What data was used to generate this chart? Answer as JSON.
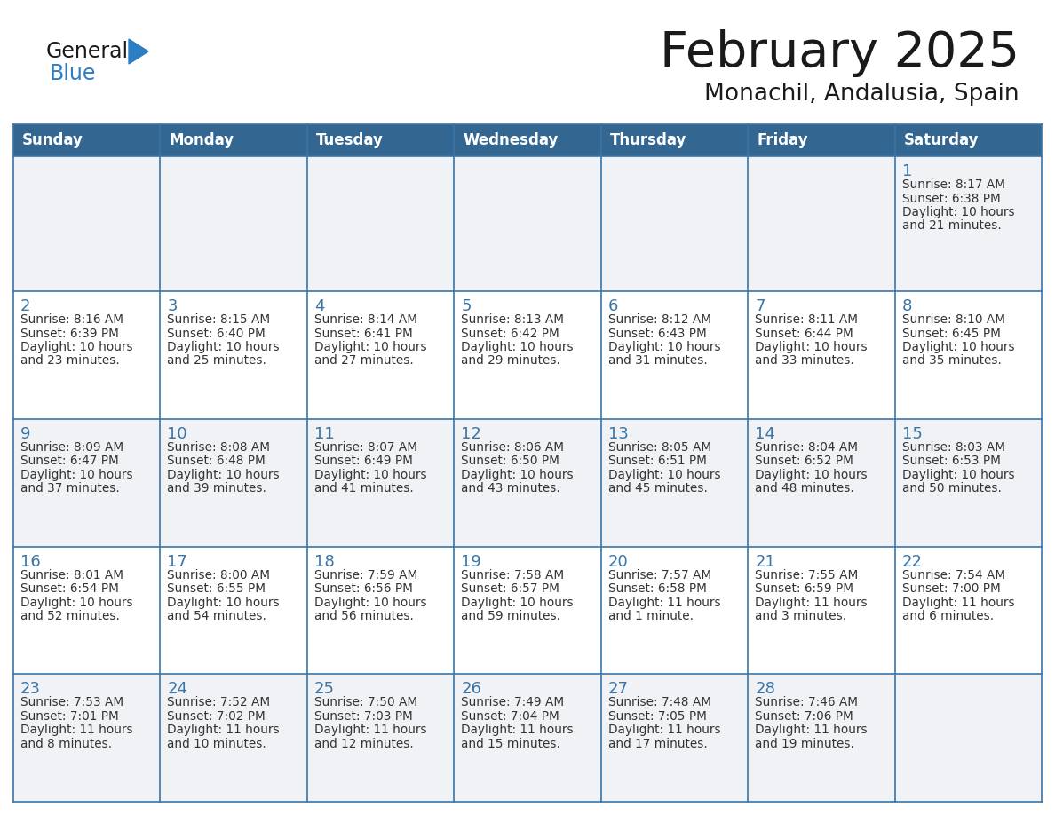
{
  "title": "February 2025",
  "subtitle": "Monachil, Andalusia, Spain",
  "days_of_week": [
    "Sunday",
    "Monday",
    "Tuesday",
    "Wednesday",
    "Thursday",
    "Friday",
    "Saturday"
  ],
  "header_bg": "#336791",
  "header_text_color": "#FFFFFF",
  "cell_bg_odd": "#F0F2F5",
  "cell_bg_even": "#FFFFFF",
  "border_color": "#3A75A8",
  "day_num_color": "#3A75A8",
  "text_color": "#333333",
  "title_color": "#1a1a1a",
  "logo_general_color": "#1a1a1a",
  "logo_blue_color": "#2E7EC3",
  "calendar_data": [
    {
      "day": 1,
      "row": 0,
      "col": 6,
      "sunrise": "8:17 AM",
      "sunset": "6:38 PM",
      "daylight": "10 hours",
      "daylight2": "and 21 minutes."
    },
    {
      "day": 2,
      "row": 1,
      "col": 0,
      "sunrise": "8:16 AM",
      "sunset": "6:39 PM",
      "daylight": "10 hours",
      "daylight2": "and 23 minutes."
    },
    {
      "day": 3,
      "row": 1,
      "col": 1,
      "sunrise": "8:15 AM",
      "sunset": "6:40 PM",
      "daylight": "10 hours",
      "daylight2": "and 25 minutes."
    },
    {
      "day": 4,
      "row": 1,
      "col": 2,
      "sunrise": "8:14 AM",
      "sunset": "6:41 PM",
      "daylight": "10 hours",
      "daylight2": "and 27 minutes."
    },
    {
      "day": 5,
      "row": 1,
      "col": 3,
      "sunrise": "8:13 AM",
      "sunset": "6:42 PM",
      "daylight": "10 hours",
      "daylight2": "and 29 minutes."
    },
    {
      "day": 6,
      "row": 1,
      "col": 4,
      "sunrise": "8:12 AM",
      "sunset": "6:43 PM",
      "daylight": "10 hours",
      "daylight2": "and 31 minutes."
    },
    {
      "day": 7,
      "row": 1,
      "col": 5,
      "sunrise": "8:11 AM",
      "sunset": "6:44 PM",
      "daylight": "10 hours",
      "daylight2": "and 33 minutes."
    },
    {
      "day": 8,
      "row": 1,
      "col": 6,
      "sunrise": "8:10 AM",
      "sunset": "6:45 PM",
      "daylight": "10 hours",
      "daylight2": "and 35 minutes."
    },
    {
      "day": 9,
      "row": 2,
      "col": 0,
      "sunrise": "8:09 AM",
      "sunset": "6:47 PM",
      "daylight": "10 hours",
      "daylight2": "and 37 minutes."
    },
    {
      "day": 10,
      "row": 2,
      "col": 1,
      "sunrise": "8:08 AM",
      "sunset": "6:48 PM",
      "daylight": "10 hours",
      "daylight2": "and 39 minutes."
    },
    {
      "day": 11,
      "row": 2,
      "col": 2,
      "sunrise": "8:07 AM",
      "sunset": "6:49 PM",
      "daylight": "10 hours",
      "daylight2": "and 41 minutes."
    },
    {
      "day": 12,
      "row": 2,
      "col": 3,
      "sunrise": "8:06 AM",
      "sunset": "6:50 PM",
      "daylight": "10 hours",
      "daylight2": "and 43 minutes."
    },
    {
      "day": 13,
      "row": 2,
      "col": 4,
      "sunrise": "8:05 AM",
      "sunset": "6:51 PM",
      "daylight": "10 hours",
      "daylight2": "and 45 minutes."
    },
    {
      "day": 14,
      "row": 2,
      "col": 5,
      "sunrise": "8:04 AM",
      "sunset": "6:52 PM",
      "daylight": "10 hours",
      "daylight2": "and 48 minutes."
    },
    {
      "day": 15,
      "row": 2,
      "col": 6,
      "sunrise": "8:03 AM",
      "sunset": "6:53 PM",
      "daylight": "10 hours",
      "daylight2": "and 50 minutes."
    },
    {
      "day": 16,
      "row": 3,
      "col": 0,
      "sunrise": "8:01 AM",
      "sunset": "6:54 PM",
      "daylight": "10 hours",
      "daylight2": "and 52 minutes."
    },
    {
      "day": 17,
      "row": 3,
      "col": 1,
      "sunrise": "8:00 AM",
      "sunset": "6:55 PM",
      "daylight": "10 hours",
      "daylight2": "and 54 minutes."
    },
    {
      "day": 18,
      "row": 3,
      "col": 2,
      "sunrise": "7:59 AM",
      "sunset": "6:56 PM",
      "daylight": "10 hours",
      "daylight2": "and 56 minutes."
    },
    {
      "day": 19,
      "row": 3,
      "col": 3,
      "sunrise": "7:58 AM",
      "sunset": "6:57 PM",
      "daylight": "10 hours",
      "daylight2": "and 59 minutes."
    },
    {
      "day": 20,
      "row": 3,
      "col": 4,
      "sunrise": "7:57 AM",
      "sunset": "6:58 PM",
      "daylight": "11 hours",
      "daylight2": "and 1 minute."
    },
    {
      "day": 21,
      "row": 3,
      "col": 5,
      "sunrise": "7:55 AM",
      "sunset": "6:59 PM",
      "daylight": "11 hours",
      "daylight2": "and 3 minutes."
    },
    {
      "day": 22,
      "row": 3,
      "col": 6,
      "sunrise": "7:54 AM",
      "sunset": "7:00 PM",
      "daylight": "11 hours",
      "daylight2": "and 6 minutes."
    },
    {
      "day": 23,
      "row": 4,
      "col": 0,
      "sunrise": "7:53 AM",
      "sunset": "7:01 PM",
      "daylight": "11 hours",
      "daylight2": "and 8 minutes."
    },
    {
      "day": 24,
      "row": 4,
      "col": 1,
      "sunrise": "7:52 AM",
      "sunset": "7:02 PM",
      "daylight": "11 hours",
      "daylight2": "and 10 minutes."
    },
    {
      "day": 25,
      "row": 4,
      "col": 2,
      "sunrise": "7:50 AM",
      "sunset": "7:03 PM",
      "daylight": "11 hours",
      "daylight2": "and 12 minutes."
    },
    {
      "day": 26,
      "row": 4,
      "col": 3,
      "sunrise": "7:49 AM",
      "sunset": "7:04 PM",
      "daylight": "11 hours",
      "daylight2": "and 15 minutes."
    },
    {
      "day": 27,
      "row": 4,
      "col": 4,
      "sunrise": "7:48 AM",
      "sunset": "7:05 PM",
      "daylight": "11 hours",
      "daylight2": "and 17 minutes."
    },
    {
      "day": 28,
      "row": 4,
      "col": 5,
      "sunrise": "7:46 AM",
      "sunset": "7:06 PM",
      "daylight": "11 hours",
      "daylight2": "and 19 minutes."
    }
  ]
}
